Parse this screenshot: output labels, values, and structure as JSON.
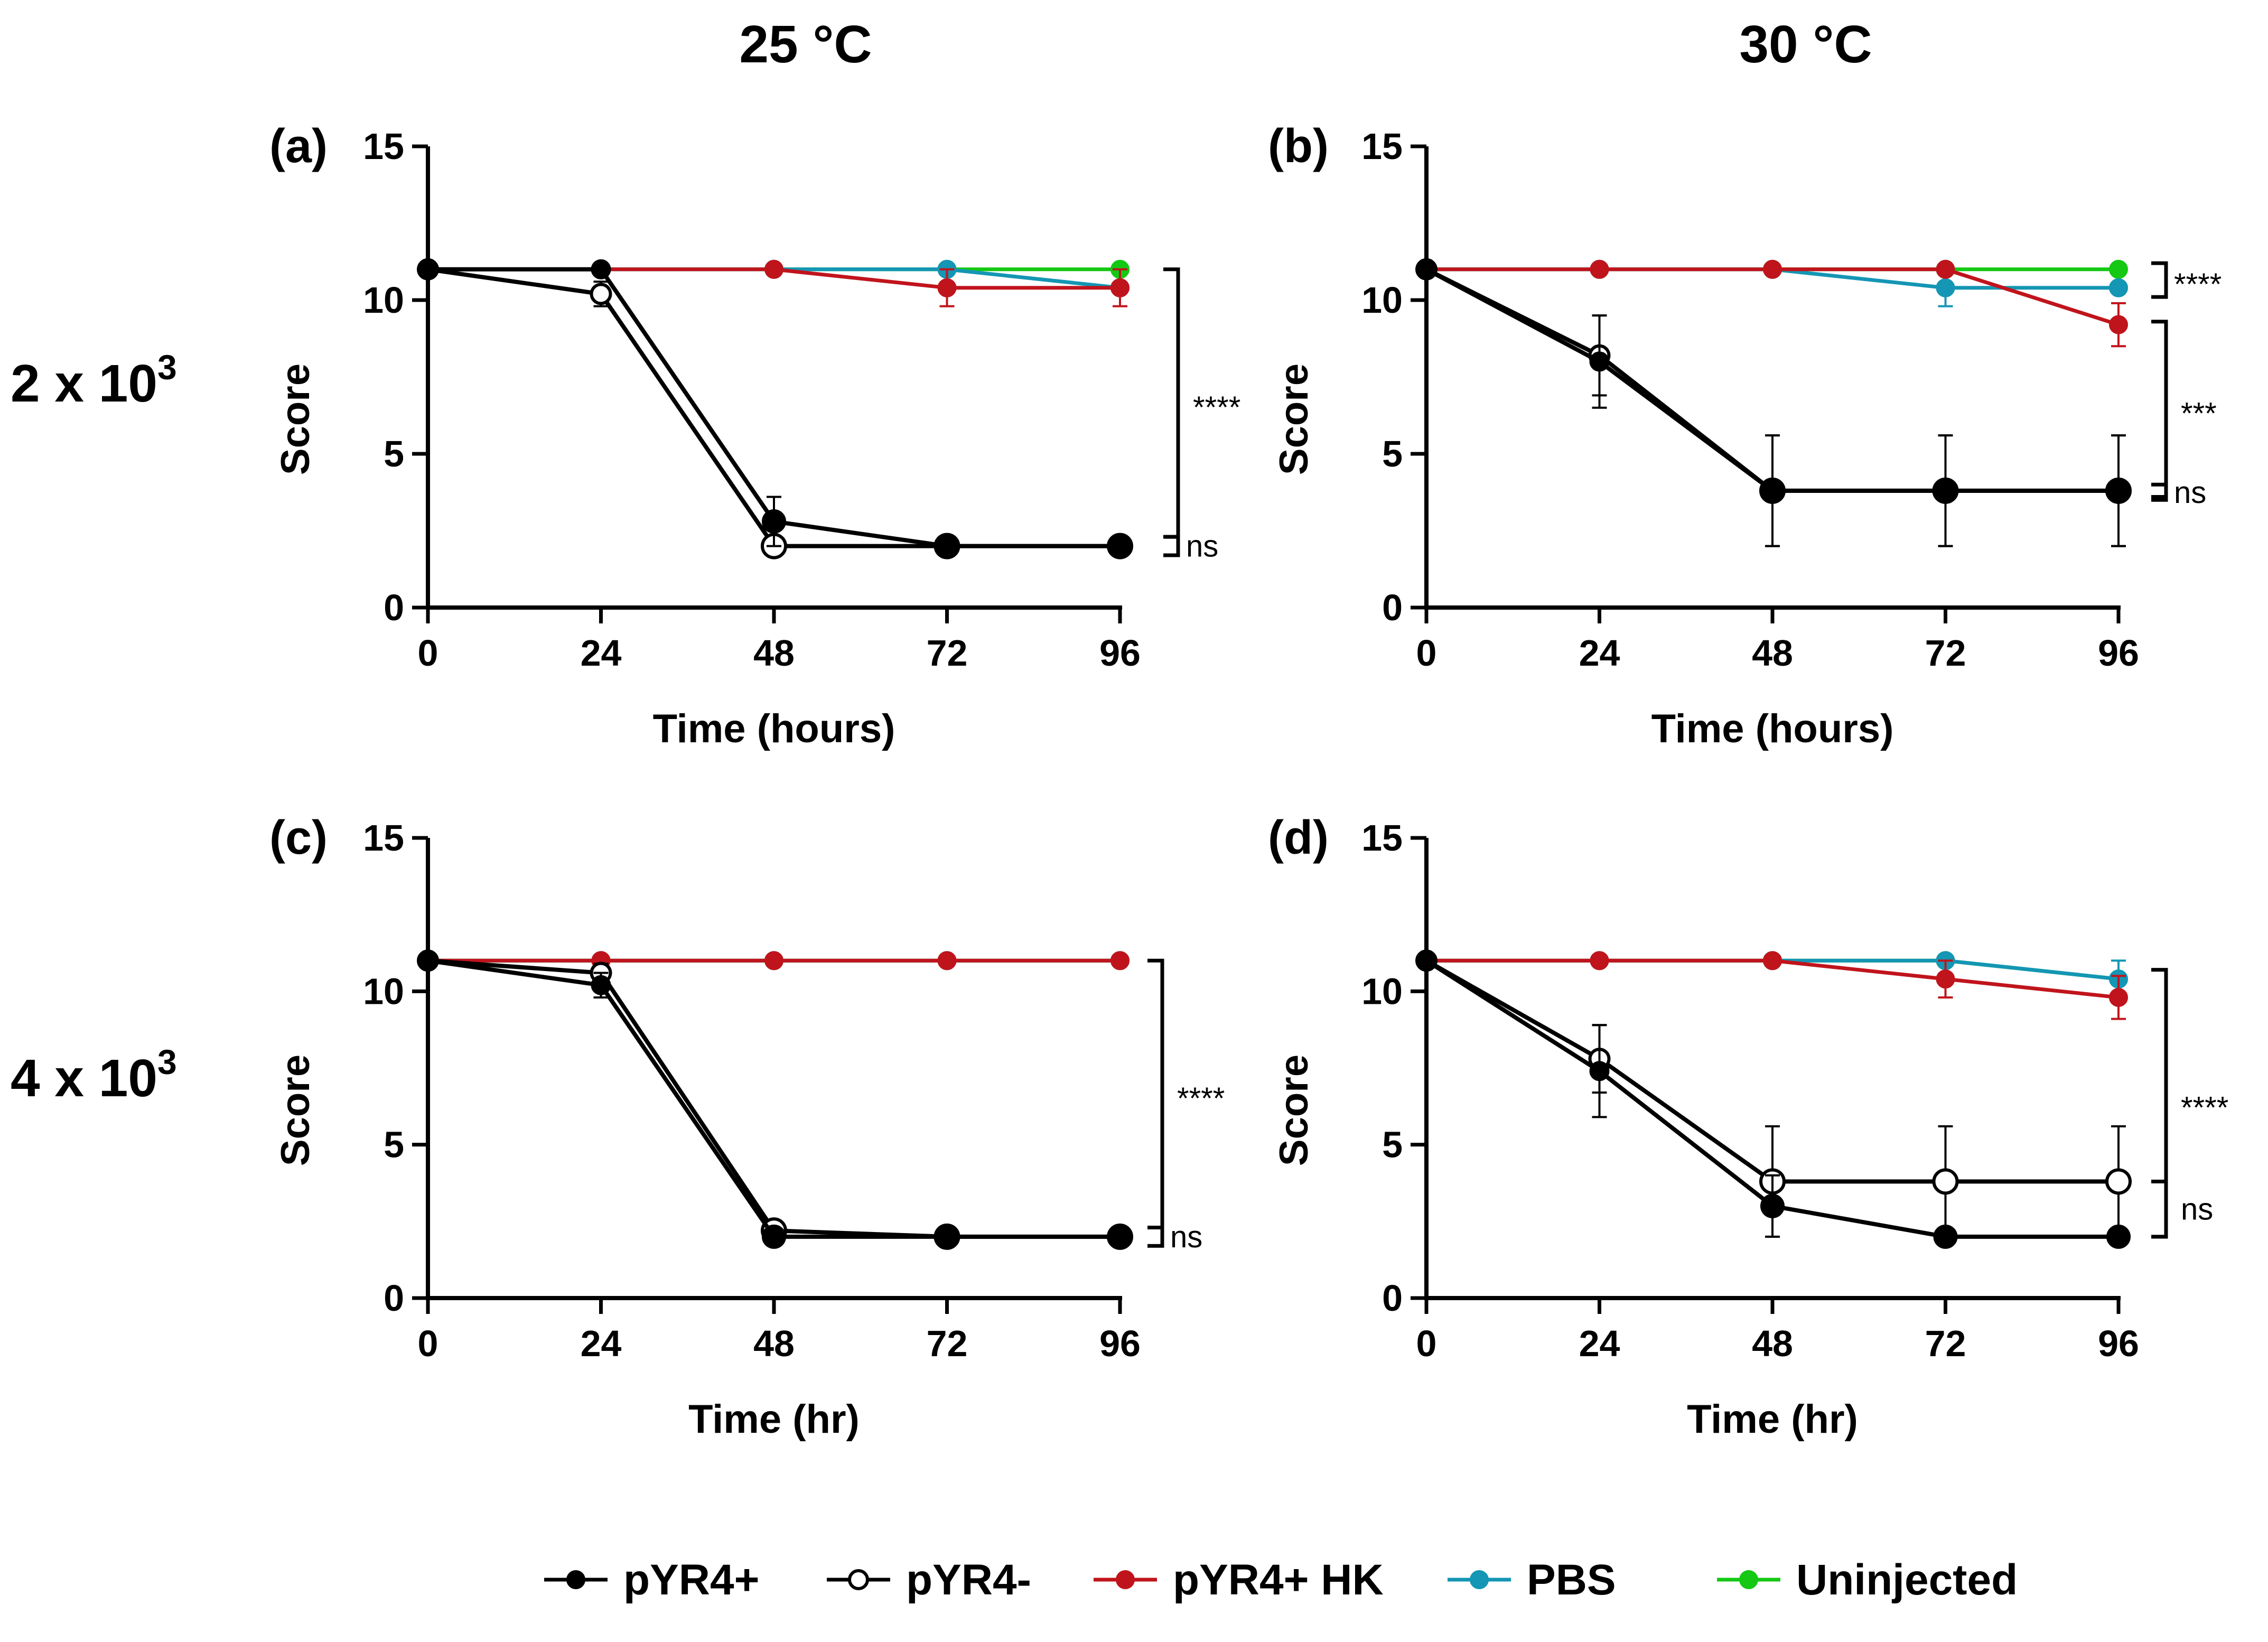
{
  "columns": [
    "25 °C",
    "30 °C"
  ],
  "rows": [
    {
      "base": "2 x 10",
      "exp": "3"
    },
    {
      "base": "4 x 10",
      "exp": "3"
    }
  ],
  "colors": {
    "pYR4+": "#000000",
    "pYR4-": "#000000",
    "pYR4+ HK": "#c0141c",
    "PBS": "#1496b4",
    "Uninjected": "#14c814"
  },
  "legend": [
    {
      "name": "pYR4+",
      "marker": "filled"
    },
    {
      "name": "pYR4-",
      "marker": "open"
    },
    {
      "name": "pYR4+ HK",
      "marker": "filled"
    },
    {
      "name": "PBS",
      "marker": "filled"
    },
    {
      "name": "Uninjected",
      "marker": "filled"
    }
  ],
  "chart_data": [
    {
      "type": "line",
      "panel": "(a)",
      "column": "25 °C",
      "dose": "2 x 10^3",
      "xlabel": "Time (hours)",
      "ylabel": "Score",
      "x": [
        0,
        24,
        48,
        72,
        96
      ],
      "xticks": [
        "0",
        "24",
        "48",
        "72",
        "96"
      ],
      "ylim": [
        0,
        15
      ],
      "yticks": [
        "0",
        "5",
        "10",
        "15"
      ],
      "series": [
        {
          "name": "Uninjected",
          "values": [
            11,
            11,
            11,
            11,
            11
          ],
          "err": [
            0,
            0,
            0,
            0,
            0
          ]
        },
        {
          "name": "PBS",
          "values": [
            11,
            11,
            11,
            11,
            10.4
          ],
          "err": [
            0,
            0,
            0,
            0,
            0
          ]
        },
        {
          "name": "pYR4+ HK",
          "values": [
            11,
            11,
            11,
            10.4,
            10.4
          ],
          "err": [
            0,
            0,
            0,
            0.6,
            0.6
          ]
        },
        {
          "name": "pYR4-",
          "values": [
            11,
            10.2,
            2,
            2,
            2
          ],
          "err": [
            0,
            0.4,
            0,
            0,
            0
          ]
        },
        {
          "name": "pYR4+",
          "values": [
            11,
            11,
            2.8,
            2,
            2
          ],
          "err": [
            0,
            0,
            0.8,
            0,
            0
          ]
        }
      ],
      "annotations": [
        {
          "text": "****",
          "from": 11,
          "to": 2.3
        },
        {
          "text": "ns",
          "from": 2.3,
          "to": 1.7
        }
      ]
    },
    {
      "type": "line",
      "panel": "(b)",
      "column": "30 °C",
      "dose": "2 x 10^3",
      "xlabel": "Time (hours)",
      "ylabel": "Score",
      "x": [
        0,
        24,
        48,
        72,
        96
      ],
      "xticks": [
        "0",
        "24",
        "48",
        "72",
        "96"
      ],
      "ylim": [
        0,
        15
      ],
      "yticks": [
        "0",
        "5",
        "10",
        "15"
      ],
      "series": [
        {
          "name": "Uninjected",
          "values": [
            11,
            11,
            11,
            11,
            11
          ],
          "err": [
            0,
            0,
            0,
            0,
            0
          ]
        },
        {
          "name": "PBS",
          "values": [
            11,
            11,
            11,
            10.4,
            10.4
          ],
          "err": [
            0,
            0,
            0,
            0.6,
            0
          ]
        },
        {
          "name": "pYR4+ HK",
          "values": [
            11,
            11,
            11,
            11,
            9.2
          ],
          "err": [
            0,
            0,
            0,
            0,
            0.7
          ]
        },
        {
          "name": "pYR4-",
          "values": [
            11,
            8.2,
            3.8,
            3.8,
            3.8
          ],
          "err": [
            0,
            1.3,
            1.8,
            1.8,
            1.8
          ]
        },
        {
          "name": "pYR4+",
          "values": [
            11,
            8,
            3.8,
            3.8,
            3.8
          ],
          "err": [
            0,
            1.5,
            1.8,
            1.8,
            1.8
          ]
        }
      ],
      "annotations": [
        {
          "text": "****",
          "from": 11.2,
          "to": 10.1
        },
        {
          "text": "***",
          "from": 9.3,
          "to": 3.6
        },
        {
          "text": "ns",
          "from": 4.0,
          "to": 3.5
        }
      ]
    },
    {
      "type": "line",
      "panel": "(c)",
      "column": "25 °C",
      "dose": "4 x 10^3",
      "xlabel": "Time (hr)",
      "ylabel": "Score",
      "x": [
        0,
        24,
        48,
        72,
        96
      ],
      "xticks": [
        "0",
        "24",
        "48",
        "72",
        "96"
      ],
      "ylim": [
        0,
        15
      ],
      "yticks": [
        "0",
        "5",
        "10",
        "15"
      ],
      "series": [
        {
          "name": "Uninjected",
          "values": [
            11,
            11,
            11,
            11,
            11
          ],
          "err": [
            0,
            0,
            0,
            0,
            0
          ]
        },
        {
          "name": "PBS",
          "values": [
            11,
            11,
            11,
            11,
            11
          ],
          "err": [
            0,
            0,
            0,
            0,
            0
          ]
        },
        {
          "name": "pYR4+ HK",
          "values": [
            11,
            11,
            11,
            11,
            11
          ],
          "err": [
            0,
            0,
            0,
            0,
            0
          ]
        },
        {
          "name": "pYR4-",
          "values": [
            11,
            10.6,
            2.2,
            2,
            2
          ],
          "err": [
            0,
            0.3,
            0,
            0,
            0
          ]
        },
        {
          "name": "pYR4+",
          "values": [
            11,
            10.2,
            2,
            2,
            2
          ],
          "err": [
            0,
            0.4,
            0,
            0,
            0
          ]
        }
      ],
      "annotations": [
        {
          "text": "****",
          "from": 11,
          "to": 2.3
        },
        {
          "text": "ns",
          "from": 2.3,
          "to": 1.7
        }
      ]
    },
    {
      "type": "line",
      "panel": "(d)",
      "column": "30 °C",
      "dose": "4 x 10^3",
      "xlabel": "Time (hr)",
      "ylabel": "Score",
      "x": [
        0,
        24,
        48,
        72,
        96
      ],
      "xticks": [
        "0",
        "24",
        "48",
        "72",
        "96"
      ],
      "ylim": [
        0,
        15
      ],
      "yticks": [
        "0",
        "5",
        "10",
        "15"
      ],
      "series": [
        {
          "name": "Uninjected",
          "values": [
            11,
            11,
            11,
            11,
            10.4
          ],
          "err": [
            0,
            0,
            0,
            0,
            0
          ]
        },
        {
          "name": "PBS",
          "values": [
            11,
            11,
            11,
            11,
            10.4
          ],
          "err": [
            0,
            0,
            0,
            0,
            0.6
          ]
        },
        {
          "name": "pYR4+ HK",
          "values": [
            11,
            11,
            11,
            10.4,
            9.8
          ],
          "err": [
            0,
            0,
            0,
            0.6,
            0.7
          ]
        },
        {
          "name": "pYR4-",
          "values": [
            11,
            7.8,
            3.8,
            3.8,
            3.8
          ],
          "err": [
            0,
            1.1,
            1.8,
            1.8,
            1.8
          ]
        },
        {
          "name": "pYR4+",
          "values": [
            11,
            7.4,
            3,
            2,
            2
          ],
          "err": [
            0,
            1.5,
            1,
            0,
            0
          ]
        }
      ],
      "annotations": [
        {
          "text": "****",
          "from": 10.7,
          "to": 2.0
        },
        {
          "text": "ns",
          "from": 3.8,
          "to": 2.0
        }
      ]
    }
  ]
}
